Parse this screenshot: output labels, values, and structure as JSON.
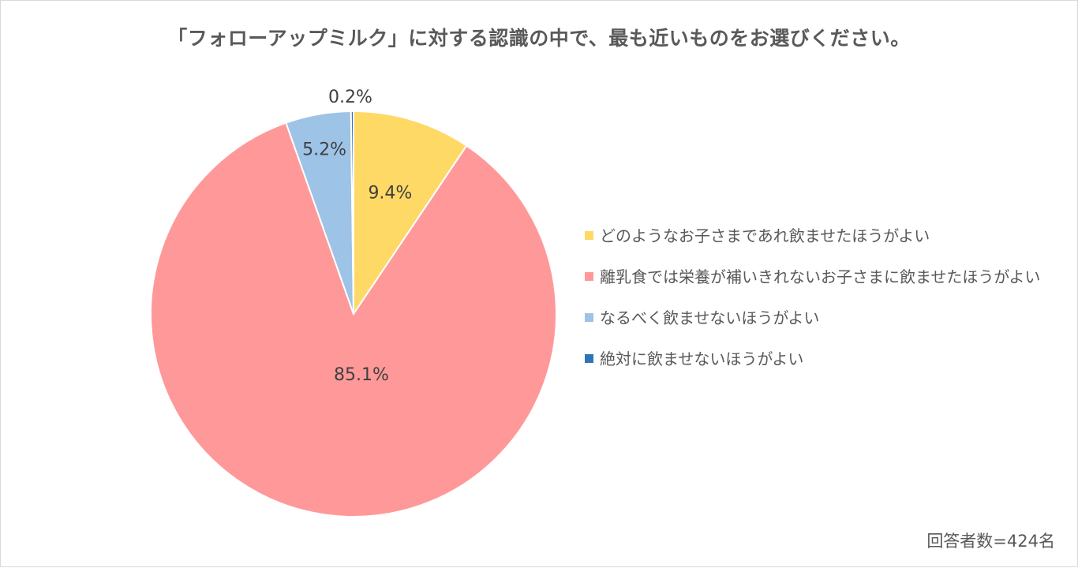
{
  "chart_data": {
    "type": "pie",
    "title": "「フォローアップミルク」に対する認識の中で、最も近いものをお選びください。",
    "slices": [
      {
        "label": "どのようなお子さまであれ飲ませたほうがよい",
        "value": 9.4,
        "value_label": "9.4%",
        "color": "#FFD966"
      },
      {
        "label": "離乳食では栄養が補いきれないお子さまに飲ませたほうがよい",
        "value": 85.1,
        "value_label": "85.1%",
        "color": "#FF9999"
      },
      {
        "label": "なるべく飲ませないほうがよい",
        "value": 5.2,
        "value_label": "5.2%",
        "color": "#9DC3E6"
      },
      {
        "label": "絶対に飲ませないほうがよい",
        "value": 0.2,
        "value_label": "0.2%",
        "color": "#2E75B6"
      }
    ],
    "legend_position": "right",
    "start_angle": "12 o'clock",
    "direction": "clockwise"
  },
  "footnote": "回答者数=424名"
}
